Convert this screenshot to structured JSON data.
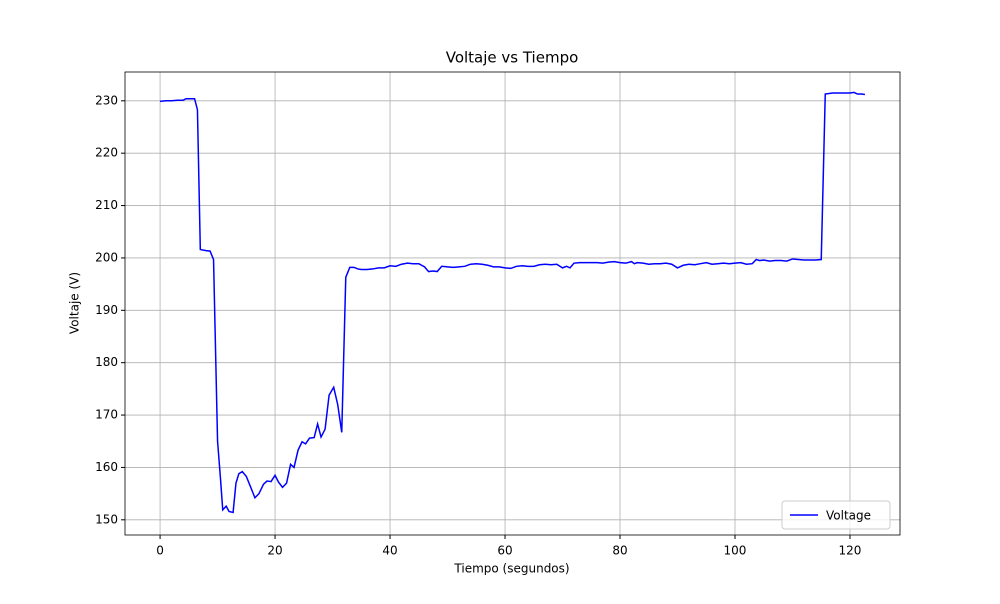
{
  "chart_data": {
    "type": "line",
    "title": "Voltaje vs Tiempo",
    "x_label": "Tiempo (segundos)",
    "y_label": "Voltaje (V)",
    "x": [
      0,
      1,
      2,
      3,
      4,
      4.5,
      5,
      6,
      6.5,
      7,
      8,
      8.7,
      9.3,
      10,
      10.5,
      10.9,
      11.5,
      12,
      12.7,
      13.2,
      13.7,
      14.3,
      15,
      15.7,
      16.5,
      17.2,
      18,
      18.6,
      19.3,
      20,
      20.6,
      21.3,
      22,
      22.7,
      23.3,
      24,
      24.7,
      25.3,
      26,
      26.8,
      27.4,
      28,
      28.7,
      29.4,
      30.2,
      30.9,
      31.6,
      32.3,
      33,
      33.7,
      34.4,
      35,
      36,
      37,
      38,
      39,
      40,
      41,
      42,
      43,
      44,
      45,
      46,
      46.7,
      47.5,
      48.2,
      49,
      50,
      51,
      52,
      53,
      54,
      55,
      56,
      57,
      58,
      59,
      60,
      61,
      62,
      63,
      64,
      65,
      66,
      67,
      68,
      69,
      70,
      70.7,
      71.3,
      72,
      73,
      74,
      75,
      76,
      77,
      78,
      79,
      80,
      81,
      82,
      82.5,
      83,
      84,
      85,
      86,
      87,
      88,
      89,
      90,
      91,
      92,
      93,
      94,
      95,
      96,
      97,
      98,
      99,
      100,
      101,
      102,
      103,
      103.7,
      104.3,
      105,
      106,
      107,
      108,
      109,
      110,
      111,
      112,
      113,
      114,
      115,
      115.7,
      117,
      118,
      119,
      120,
      120.7,
      121.3,
      122,
      122.6
    ],
    "series": [
      {
        "name": "Voltage",
        "color": "#0000ff",
        "values": [
          229.9,
          230,
          230,
          230.1,
          230.1,
          230.4,
          230.4,
          230.4,
          228.3,
          201.6,
          201.4,
          201.3,
          199.7,
          165,
          158,
          151.9,
          152.6,
          151.6,
          151.4,
          157,
          158.8,
          159.2,
          158.3,
          156.4,
          154.2,
          155,
          156.8,
          157.4,
          157.3,
          158.5,
          157.2,
          156.2,
          157,
          160.6,
          160,
          163.3,
          164.9,
          164.5,
          165.6,
          165.7,
          168.3,
          165.8,
          167.3,
          173.8,
          175.3,
          172,
          166.7,
          196.3,
          198.2,
          198.2,
          197.9,
          197.8,
          197.8,
          197.9,
          198.1,
          198.1,
          198.5,
          198.4,
          198.8,
          199,
          198.9,
          198.9,
          198.3,
          197.4,
          197.5,
          197.4,
          198.4,
          198.3,
          198.2,
          198.3,
          198.4,
          198.8,
          198.9,
          198.8,
          198.6,
          198.3,
          198.3,
          198.1,
          198,
          198.4,
          198.5,
          198.4,
          198.4,
          198.7,
          198.8,
          198.7,
          198.8,
          198.1,
          198.4,
          198.1,
          199,
          199.1,
          199.1,
          199.1,
          199.1,
          199,
          199.2,
          199.3,
          199.1,
          199,
          199.3,
          198.9,
          199.1,
          199,
          198.8,
          198.9,
          198.9,
          199,
          198.8,
          198.1,
          198.6,
          198.8,
          198.7,
          198.9,
          199.1,
          198.8,
          198.9,
          199,
          198.9,
          199,
          199.1,
          198.8,
          198.9,
          199.7,
          199.5,
          199.6,
          199.4,
          199.5,
          199.5,
          199.4,
          199.8,
          199.7,
          199.6,
          199.6,
          199.6,
          199.7,
          231.3,
          231.5,
          231.5,
          231.5,
          231.5,
          231.6,
          231.3,
          231.3,
          231.2
        ]
      }
    ],
    "xlim": [
      -6.1,
      128.7
    ],
    "ylim": [
      147.1,
      235.5
    ],
    "xticks": [
      0,
      20,
      40,
      60,
      80,
      100,
      120
    ],
    "yticks": [
      150,
      160,
      170,
      180,
      190,
      200,
      210,
      220,
      230
    ],
    "grid": true,
    "legend": "lower right"
  }
}
